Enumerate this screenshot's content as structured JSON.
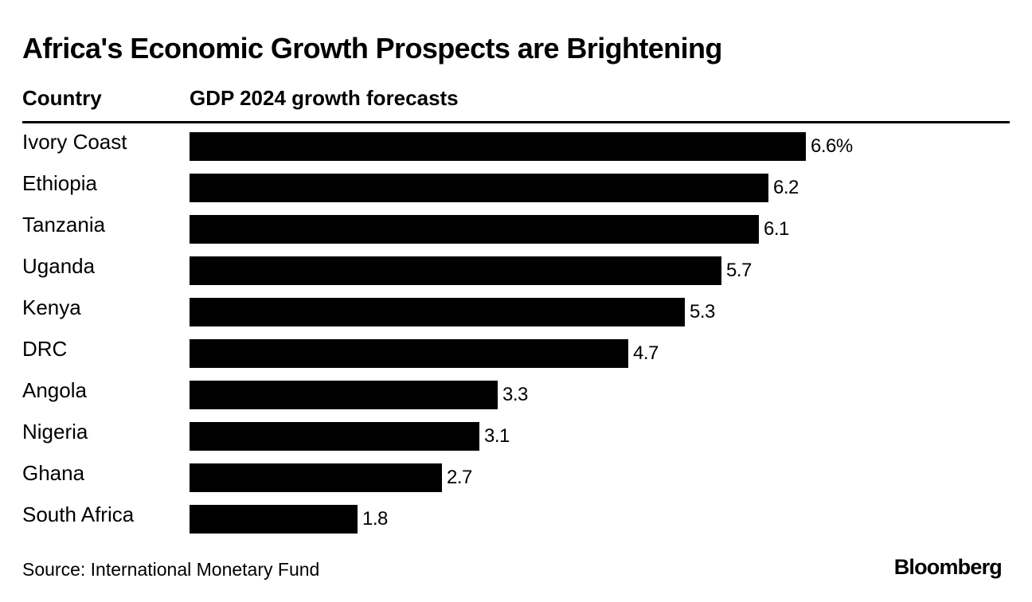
{
  "title": "Africa's Economic Growth Prospects are Brightening",
  "source": "Source: International Monetary Fund",
  "brand": "Bloomberg",
  "chart_data": {
    "type": "bar",
    "orientation": "horizontal",
    "title": "Africa's Economic Growth Prospects are Brightening",
    "category_header": "Country",
    "value_header": "GDP 2024 growth forecasts",
    "categories": [
      "Ivory Coast",
      "Ethiopia",
      "Tanzania",
      "Uganda",
      "Kenya",
      "DRC",
      "Angola",
      "Nigeria",
      "Ghana",
      "South Africa"
    ],
    "values": [
      6.6,
      6.2,
      6.1,
      5.7,
      5.3,
      4.7,
      3.3,
      3.1,
      2.7,
      1.8
    ],
    "value_labels": [
      "6.6%",
      "6.2",
      "6.1",
      "5.7",
      "5.3",
      "4.7",
      "3.3",
      "3.1",
      "2.7",
      "1.8"
    ],
    "xlim": [
      0,
      6.6
    ],
    "grid": false,
    "bar_color": "#000000"
  }
}
